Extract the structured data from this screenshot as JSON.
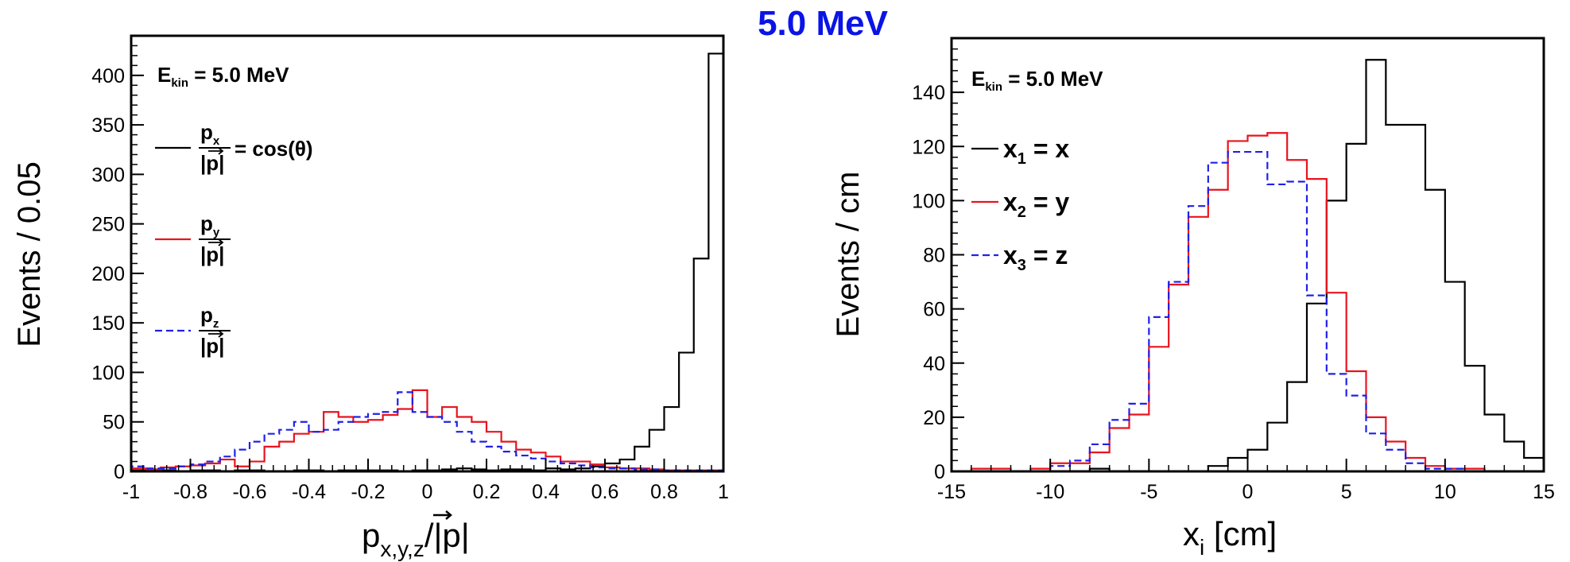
{
  "title": "5.0 MeV",
  "colors": {
    "black": "#000000",
    "red": "#e8141e",
    "blue": "#2020e8",
    "title": "#0a14e6"
  },
  "chart_data": [
    {
      "type": "histogram",
      "xlim": [
        -1,
        1
      ],
      "ylim": [
        0,
        440
      ],
      "xticks": [
        -1,
        -0.8,
        -0.6,
        -0.4,
        -0.2,
        0,
        0.2,
        0.4,
        0.6,
        0.8,
        1
      ],
      "xtick_labels": [
        "-1",
        "-0.8",
        "-0.6",
        "-0.4",
        "-0.2",
        "0",
        "0.2",
        "0.4",
        "0.6",
        "0.8",
        "1"
      ],
      "yticks": [
        0,
        50,
        100,
        150,
        200,
        250,
        300,
        350,
        400
      ],
      "ytick_labels": [
        "0",
        "50",
        "100",
        "150",
        "200",
        "250",
        "300",
        "350",
        "400"
      ],
      "ylabel": "Events / 0.05",
      "xlabel": {
        "p": "p",
        "sub": "x,y,z",
        "slash": "/",
        "vec": "|p|"
      },
      "annotation": {
        "e": "E",
        "sub": "kin",
        "rest": " = 5.0 MeV"
      },
      "bin_edges": [
        -1,
        -0.95,
        -0.9,
        -0.85,
        -0.8,
        -0.75,
        -0.7,
        -0.65,
        -0.6,
        -0.55,
        -0.5,
        -0.45,
        -0.4,
        -0.35,
        -0.3,
        -0.25,
        -0.2,
        -0.15,
        -0.1,
        -0.05,
        0,
        0.05,
        0.1,
        0.15,
        0.2,
        0.25,
        0.3,
        0.35,
        0.4,
        0.45,
        0.5,
        0.55,
        0.6,
        0.65,
        0.7,
        0.75,
        0.8,
        0.85,
        0.9,
        0.95,
        1
      ],
      "series": [
        {
          "name": "p_x",
          "color": "#000000",
          "dashed": false,
          "values": [
            1,
            0,
            1,
            0,
            1,
            1,
            0,
            1,
            1,
            0,
            0,
            1,
            1,
            0,
            1,
            1,
            1,
            1,
            0,
            1,
            1,
            2,
            3,
            2,
            1,
            2,
            2,
            1,
            3,
            2,
            3,
            5,
            8,
            12,
            25,
            42,
            65,
            120,
            215,
            422
          ]
        },
        {
          "name": "p_y",
          "color": "#e8141e",
          "dashed": false,
          "values": [
            3,
            2,
            4,
            5,
            6,
            8,
            12,
            5,
            10,
            25,
            30,
            38,
            40,
            60,
            55,
            50,
            52,
            57,
            63,
            82,
            55,
            65,
            55,
            50,
            40,
            30,
            22,
            19,
            15,
            10,
            10,
            7,
            4,
            3,
            3,
            2,
            1,
            1,
            1,
            1
          ]
        },
        {
          "name": "p_z",
          "color": "#2020e8",
          "dashed": true,
          "values": [
            5,
            3,
            3,
            5,
            7,
            10,
            15,
            22,
            30,
            38,
            42,
            50,
            40,
            42,
            50,
            55,
            58,
            60,
            80,
            60,
            55,
            50,
            40,
            30,
            25,
            20,
            16,
            13,
            10,
            8,
            6,
            4,
            3,
            3,
            2,
            2,
            1,
            1,
            1,
            1
          ]
        }
      ],
      "legend": [
        {
          "num": "p",
          "numsub": "x",
          "den": "|p|",
          "suffix": "= cos(θ)"
        },
        {
          "num": "p",
          "numsub": "y",
          "den": "|p|",
          "suffix": ""
        },
        {
          "num": "p",
          "numsub": "z",
          "den": "|p|",
          "suffix": ""
        }
      ]
    },
    {
      "type": "histogram",
      "xlim": [
        -15,
        15
      ],
      "ylim": [
        0,
        160
      ],
      "xticks": [
        -15,
        -10,
        -5,
        0,
        5,
        10,
        15
      ],
      "xtick_labels": [
        "-15",
        "-10",
        "-5",
        "0",
        "5",
        "10",
        "15"
      ],
      "yticks": [
        0,
        20,
        40,
        60,
        80,
        100,
        120,
        140
      ],
      "ytick_labels": [
        "0",
        "20",
        "40",
        "60",
        "80",
        "100",
        "120",
        "140"
      ],
      "ylabel": "Events / cm",
      "xlabel": {
        "x": "x",
        "sub": "i",
        "rest": " [cm]"
      },
      "annotation": {
        "e": "E",
        "sub": "kin",
        "rest": " = 5.0 MeV"
      },
      "bin_edges": [
        -15,
        -14,
        -13,
        -12,
        -11,
        -10,
        -9,
        -8,
        -7,
        -6,
        -5,
        -4,
        -3,
        -2,
        -1,
        0,
        1,
        2,
        3,
        4,
        5,
        6,
        7,
        8,
        9,
        10,
        11,
        12,
        13,
        14,
        15
      ],
      "series": [
        {
          "name": "x1 = x",
          "color": "#000000",
          "dashed": false,
          "values": [
            0,
            0,
            0,
            0,
            0,
            0,
            0,
            1,
            0,
            0,
            0,
            0,
            0,
            2,
            5,
            8,
            18,
            33,
            62,
            100,
            121,
            152,
            128,
            128,
            104,
            70,
            39,
            21,
            11,
            5
          ]
        },
        {
          "name": "x2 = y",
          "color": "#e8141e",
          "dashed": false,
          "values": [
            0,
            1,
            1,
            0,
            1,
            3,
            3,
            7,
            16,
            21,
            46,
            69,
            94,
            104,
            122,
            124,
            125,
            115,
            108,
            66,
            37,
            20,
            11,
            5,
            2,
            1,
            1,
            0,
            0,
            0
          ]
        },
        {
          "name": "x3 = z",
          "color": "#2020e8",
          "dashed": true,
          "values": [
            0,
            0,
            0,
            0,
            0,
            2,
            4,
            10,
            19,
            25,
            57,
            70,
            98,
            114,
            118,
            118,
            106,
            107,
            65,
            36,
            28,
            14,
            8,
            3,
            1,
            1,
            0,
            0,
            0,
            0
          ]
        }
      ],
      "legend": [
        {
          "v": "x",
          "sub": "1",
          "rest": " = x"
        },
        {
          "v": "x",
          "sub": "2",
          "rest": " = y"
        },
        {
          "v": "x",
          "sub": "3",
          "rest": " = z"
        }
      ]
    }
  ]
}
